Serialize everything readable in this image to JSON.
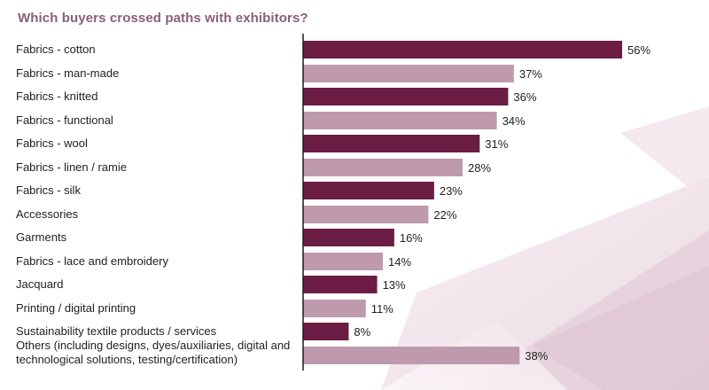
{
  "chart_data": {
    "type": "bar",
    "orientation": "horizontal",
    "title": "Which buyers crossed paths with exhibitors?",
    "categories": [
      "Fabrics - cotton",
      "Fabrics - man-made",
      "Fabrics - knitted",
      "Fabrics - functional",
      "Fabrics - wool",
      "Fabrics - linen / ramie",
      "Fabrics - silk",
      "Accessories",
      "Garments",
      "Fabrics - lace and embroidery",
      "Jacquard",
      "Printing / digital printing",
      "Sustainability textile products / services",
      [
        "Others (including designs, dyes/auxiliaries, digital and",
        "technological solutions, testing/certification)"
      ]
    ],
    "values": [
      56,
      37,
      36,
      34,
      31,
      28,
      23,
      22,
      16,
      14,
      13,
      11,
      8,
      38
    ],
    "value_labels": [
      "56%",
      "37%",
      "36%",
      "34%",
      "31%",
      "28%",
      "23%",
      "22%",
      "16%",
      "14%",
      "13%",
      "11%",
      "8%",
      "38%"
    ],
    "unit": "%",
    "xlim": [
      0,
      56
    ],
    "grid": false,
    "legend": "none",
    "colors": {
      "dark": "#6b1d44",
      "light": "#be9aac",
      "axis": "#1a1a1a",
      "title": "#8a5f76"
    }
  }
}
